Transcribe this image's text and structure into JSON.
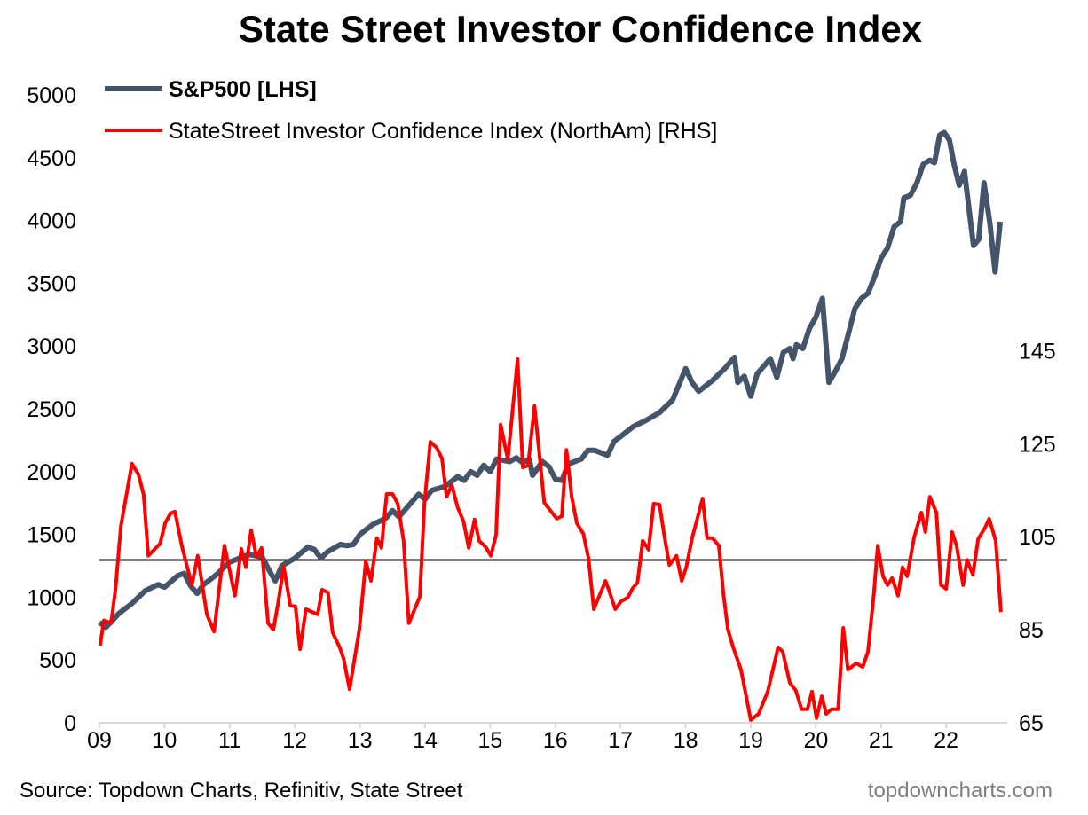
{
  "chart_data": {
    "type": "line",
    "title": "State Street Investor Confidence Index",
    "source": "Source: Topdown Charts, Refinitiv, State Street",
    "watermark": "topdowncharts.com",
    "x_ticks": [
      "09",
      "10",
      "11",
      "12",
      "13",
      "14",
      "15",
      "16",
      "17",
      "18",
      "19",
      "20",
      "21",
      "22"
    ],
    "x_range": [
      2009,
      2023
    ],
    "left_axis": {
      "range": [
        0,
        5000
      ],
      "ticks": [
        "0",
        "500",
        "1000",
        "1500",
        "2000",
        "2500",
        "3000",
        "3500",
        "4000",
        "4500",
        "5000"
      ]
    },
    "right_axis": {
      "range": [
        65,
        200
      ],
      "ticks": [
        "65",
        "85",
        "105",
        "125",
        "145"
      ]
    },
    "reference_line": {
      "axis": "right",
      "value": 100
    },
    "series": [
      {
        "name": "S&P500 [LHS]",
        "axis": "left",
        "color": "#44546a",
        "points": [
          [
            2009.0,
            800
          ],
          [
            2009.1,
            760
          ],
          [
            2009.3,
            870
          ],
          [
            2009.5,
            950
          ],
          [
            2009.7,
            1050
          ],
          [
            2009.9,
            1100
          ],
          [
            2010.0,
            1080
          ],
          [
            2010.2,
            1170
          ],
          [
            2010.3,
            1190
          ],
          [
            2010.4,
            1090
          ],
          [
            2010.5,
            1030
          ],
          [
            2010.6,
            1100
          ],
          [
            2010.8,
            1180
          ],
          [
            2011.0,
            1280
          ],
          [
            2011.3,
            1340
          ],
          [
            2011.5,
            1320
          ],
          [
            2011.6,
            1220
          ],
          [
            2011.7,
            1130
          ],
          [
            2011.8,
            1250
          ],
          [
            2012.0,
            1310
          ],
          [
            2012.2,
            1400
          ],
          [
            2012.3,
            1380
          ],
          [
            2012.4,
            1310
          ],
          [
            2012.5,
            1360
          ],
          [
            2012.7,
            1420
          ],
          [
            2012.8,
            1410
          ],
          [
            2012.9,
            1420
          ],
          [
            2013.0,
            1500
          ],
          [
            2013.2,
            1580
          ],
          [
            2013.4,
            1630
          ],
          [
            2013.5,
            1690
          ],
          [
            2013.6,
            1640
          ],
          [
            2013.8,
            1760
          ],
          [
            2013.9,
            1820
          ],
          [
            2014.0,
            1780
          ],
          [
            2014.1,
            1850
          ],
          [
            2014.3,
            1880
          ],
          [
            2014.5,
            1960
          ],
          [
            2014.6,
            1930
          ],
          [
            2014.7,
            2000
          ],
          [
            2014.8,
            1970
          ],
          [
            2014.9,
            2050
          ],
          [
            2015.0,
            2000
          ],
          [
            2015.1,
            2100
          ],
          [
            2015.3,
            2080
          ],
          [
            2015.4,
            2110
          ],
          [
            2015.5,
            2070
          ],
          [
            2015.6,
            2100
          ],
          [
            2015.65,
            1970
          ],
          [
            2015.8,
            2080
          ],
          [
            2015.9,
            2040
          ],
          [
            2016.0,
            1940
          ],
          [
            2016.1,
            1930
          ],
          [
            2016.2,
            2060
          ],
          [
            2016.4,
            2100
          ],
          [
            2016.5,
            2170
          ],
          [
            2016.6,
            2170
          ],
          [
            2016.8,
            2130
          ],
          [
            2016.9,
            2240
          ],
          [
            2017.0,
            2280
          ],
          [
            2017.2,
            2360
          ],
          [
            2017.4,
            2410
          ],
          [
            2017.6,
            2470
          ],
          [
            2017.8,
            2570
          ],
          [
            2018.0,
            2820
          ],
          [
            2018.1,
            2710
          ],
          [
            2018.2,
            2640
          ],
          [
            2018.4,
            2720
          ],
          [
            2018.6,
            2820
          ],
          [
            2018.75,
            2910
          ],
          [
            2018.8,
            2710
          ],
          [
            2018.9,
            2760
          ],
          [
            2019.0,
            2600
          ],
          [
            2019.1,
            2780
          ],
          [
            2019.3,
            2900
          ],
          [
            2019.4,
            2750
          ],
          [
            2019.5,
            2950
          ],
          [
            2019.6,
            2980
          ],
          [
            2019.65,
            2900
          ],
          [
            2019.7,
            3010
          ],
          [
            2019.8,
            2980
          ],
          [
            2019.9,
            3140
          ],
          [
            2020.0,
            3230
          ],
          [
            2020.1,
            3380
          ],
          [
            2020.2,
            2710
          ],
          [
            2020.3,
            2800
          ],
          [
            2020.4,
            2900
          ],
          [
            2020.5,
            3100
          ],
          [
            2020.6,
            3300
          ],
          [
            2020.7,
            3380
          ],
          [
            2020.8,
            3420
          ],
          [
            2020.9,
            3550
          ],
          [
            2021.0,
            3700
          ],
          [
            2021.1,
            3780
          ],
          [
            2021.2,
            3950
          ],
          [
            2021.3,
            3990
          ],
          [
            2021.35,
            4180
          ],
          [
            2021.45,
            4200
          ],
          [
            2021.55,
            4300
          ],
          [
            2021.65,
            4450
          ],
          [
            2021.75,
            4480
          ],
          [
            2021.82,
            4460
          ],
          [
            2021.9,
            4680
          ],
          [
            2021.97,
            4700
          ],
          [
            2022.05,
            4640
          ],
          [
            2022.12,
            4450
          ],
          [
            2022.2,
            4280
          ],
          [
            2022.28,
            4390
          ],
          [
            2022.36,
            4050
          ],
          [
            2022.42,
            3800
          ],
          [
            2022.5,
            3850
          ],
          [
            2022.58,
            4300
          ],
          [
            2022.67,
            3980
          ],
          [
            2022.75,
            3590
          ],
          [
            2022.83,
            3990
          ]
        ]
      },
      {
        "name": "StateStreet Investor Confidence Index (NorthAm) [RHS]",
        "axis": "right",
        "color": "#ff0000",
        "points": [
          [
            2009.01,
            81.6
          ],
          [
            2009.07,
            87
          ],
          [
            2009.18,
            86.4
          ],
          [
            2009.25,
            94
          ],
          [
            2009.33,
            107.3
          ],
          [
            2009.5,
            120.7
          ],
          [
            2009.6,
            118.4
          ],
          [
            2009.68,
            114
          ],
          [
            2009.75,
            100.9
          ],
          [
            2009.93,
            103.5
          ],
          [
            2010.01,
            107.9
          ],
          [
            2010.09,
            110
          ],
          [
            2010.16,
            110.4
          ],
          [
            2010.27,
            102.8
          ],
          [
            2010.42,
            94.6
          ],
          [
            2010.51,
            100.9
          ],
          [
            2010.65,
            88.3
          ],
          [
            2010.76,
            84.6
          ],
          [
            2010.84,
            94
          ],
          [
            2010.92,
            103.1
          ],
          [
            2011.08,
            92.3
          ],
          [
            2011.18,
            102.4
          ],
          [
            2011.25,
            98.4
          ],
          [
            2011.33,
            106.4
          ],
          [
            2011.41,
            100.7
          ],
          [
            2011.49,
            102.6
          ],
          [
            2011.59,
            86.4
          ],
          [
            2011.67,
            85
          ],
          [
            2011.74,
            90.4
          ],
          [
            2011.83,
            98.6
          ],
          [
            2011.93,
            90.2
          ],
          [
            2012.01,
            90
          ],
          [
            2012.08,
            80.8
          ],
          [
            2012.17,
            89.4
          ],
          [
            2012.35,
            88.3
          ],
          [
            2012.42,
            93.6
          ],
          [
            2012.51,
            93
          ],
          [
            2012.58,
            84.4
          ],
          [
            2012.69,
            81.2
          ],
          [
            2012.75,
            78.7
          ],
          [
            2012.84,
            72.2
          ],
          [
            2012.99,
            85
          ],
          [
            2013.09,
            99.7
          ],
          [
            2013.17,
            95.5
          ],
          [
            2013.26,
            104.7
          ],
          [
            2013.33,
            102.6
          ],
          [
            2013.41,
            114.2
          ],
          [
            2013.5,
            114.2
          ],
          [
            2013.58,
            112.1
          ],
          [
            2013.67,
            104.1
          ],
          [
            2013.75,
            86.4
          ],
          [
            2013.92,
            92.1
          ],
          [
            2013.99,
            112.3
          ],
          [
            2014.08,
            125.4
          ],
          [
            2014.18,
            124.1
          ],
          [
            2014.26,
            121.8
          ],
          [
            2014.33,
            113.6
          ],
          [
            2014.41,
            116.1
          ],
          [
            2014.5,
            111.3
          ],
          [
            2014.59,
            108.3
          ],
          [
            2014.67,
            102.6
          ],
          [
            2014.76,
            108.7
          ],
          [
            2014.83,
            104.1
          ],
          [
            2014.93,
            102.8
          ],
          [
            2015.01,
            100.9
          ],
          [
            2015.09,
            105.4
          ],
          [
            2015.16,
            129.1
          ],
          [
            2015.27,
            121.6
          ],
          [
            2015.42,
            143.2
          ],
          [
            2015.5,
            119.9
          ],
          [
            2015.58,
            120.3
          ],
          [
            2015.68,
            133.1
          ],
          [
            2015.83,
            112.3
          ],
          [
            2016.02,
            108.9
          ],
          [
            2016.1,
            109.4
          ],
          [
            2016.17,
            123.7
          ],
          [
            2016.25,
            113.6
          ],
          [
            2016.33,
            107.9
          ],
          [
            2016.43,
            105.6
          ],
          [
            2016.51,
            100.3
          ],
          [
            2016.59,
            89.4
          ],
          [
            2016.77,
            95.5
          ],
          [
            2016.83,
            93.2
          ],
          [
            2016.92,
            89.4
          ],
          [
            2017.01,
            91.1
          ],
          [
            2017.11,
            91.9
          ],
          [
            2017.19,
            94
          ],
          [
            2017.26,
            95.1
          ],
          [
            2017.34,
            104.1
          ],
          [
            2017.43,
            102.2
          ],
          [
            2017.51,
            112.1
          ],
          [
            2017.6,
            111.9
          ],
          [
            2017.67,
            105.4
          ],
          [
            2017.75,
            98.9
          ],
          [
            2017.86,
            100.9
          ],
          [
            2017.94,
            95.5
          ],
          [
            2018.01,
            98.4
          ],
          [
            2018.1,
            104.7
          ],
          [
            2018.26,
            113.2
          ],
          [
            2018.33,
            104.7
          ],
          [
            2018.41,
            104.7
          ],
          [
            2018.51,
            103.1
          ],
          [
            2018.58,
            92.7
          ],
          [
            2018.65,
            85
          ],
          [
            2018.73,
            81.2
          ],
          [
            2018.85,
            76.4
          ],
          [
            2019.0,
            65.6
          ],
          [
            2019.12,
            66.9
          ],
          [
            2019.26,
            71.7
          ],
          [
            2019.42,
            81.2
          ],
          [
            2019.49,
            80.3
          ],
          [
            2019.6,
            73.6
          ],
          [
            2019.69,
            72
          ],
          [
            2019.78,
            67.9
          ],
          [
            2019.87,
            67.9
          ],
          [
            2019.94,
            71.7
          ],
          [
            2020.01,
            66
          ],
          [
            2020.09,
            70.7
          ],
          [
            2020.16,
            66.9
          ],
          [
            2020.24,
            67.9
          ],
          [
            2020.34,
            67.9
          ],
          [
            2020.42,
            85.4
          ],
          [
            2020.49,
            76.4
          ],
          [
            2020.62,
            77.8
          ],
          [
            2020.72,
            77
          ],
          [
            2020.8,
            80.3
          ],
          [
            2020.89,
            92.7
          ],
          [
            2020.95,
            103.1
          ],
          [
            2021.03,
            96.5
          ],
          [
            2021.1,
            94.6
          ],
          [
            2021.17,
            96.1
          ],
          [
            2021.26,
            92.3
          ],
          [
            2021.33,
            98.4
          ],
          [
            2021.4,
            96.5
          ],
          [
            2021.51,
            105
          ],
          [
            2021.62,
            110.2
          ],
          [
            2021.68,
            106
          ],
          [
            2021.75,
            113.6
          ],
          [
            2021.85,
            110.2
          ],
          [
            2021.92,
            94.6
          ],
          [
            2022.0,
            93.8
          ],
          [
            2022.09,
            106
          ],
          [
            2022.16,
            103.1
          ],
          [
            2022.26,
            94.6
          ],
          [
            2022.32,
            100
          ],
          [
            2022.41,
            96.8
          ],
          [
            2022.49,
            104.5
          ],
          [
            2022.6,
            107
          ],
          [
            2022.66,
            108.9
          ],
          [
            2022.76,
            104.1
          ],
          [
            2022.84,
            88.8
          ]
        ]
      }
    ],
    "grid": false,
    "legend_position": "top-left"
  }
}
